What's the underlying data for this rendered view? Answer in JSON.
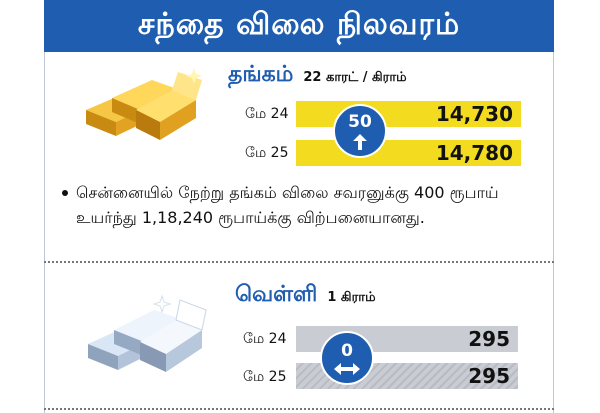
{
  "header": {
    "title": "சந்தை விலை நிலவரம்"
  },
  "gold": {
    "name": "தங்கம்",
    "unit": "22 காரட் / கிராம்",
    "rows": [
      {
        "date": "மே 24",
        "price": "14,730"
      },
      {
        "date": "மே 25",
        "price": "14,780"
      }
    ],
    "change": "50",
    "change_direction": "up",
    "icon": "gold-bars-icon",
    "colors": {
      "bar": "#f3dc20",
      "accent": "#1f5db0"
    }
  },
  "note": {
    "text": "சென்னையில் நேற்று தங்கம் விலை சவரனுக்கு 400 ரூபாய் உயர்ந்து 1,18,240 ரூபாய்க்கு விற்பனையானது."
  },
  "silver": {
    "name": "வெள்ளி",
    "unit": "1 கிராம்",
    "rows": [
      {
        "date": "மே 24",
        "price": "295"
      },
      {
        "date": "மே 25",
        "price": "295"
      }
    ],
    "change": "0",
    "change_direction": "no-change",
    "icon": "silver-bars-icon",
    "colors": {
      "bar": "#c9ccd2",
      "accent": "#1f5db0"
    }
  }
}
